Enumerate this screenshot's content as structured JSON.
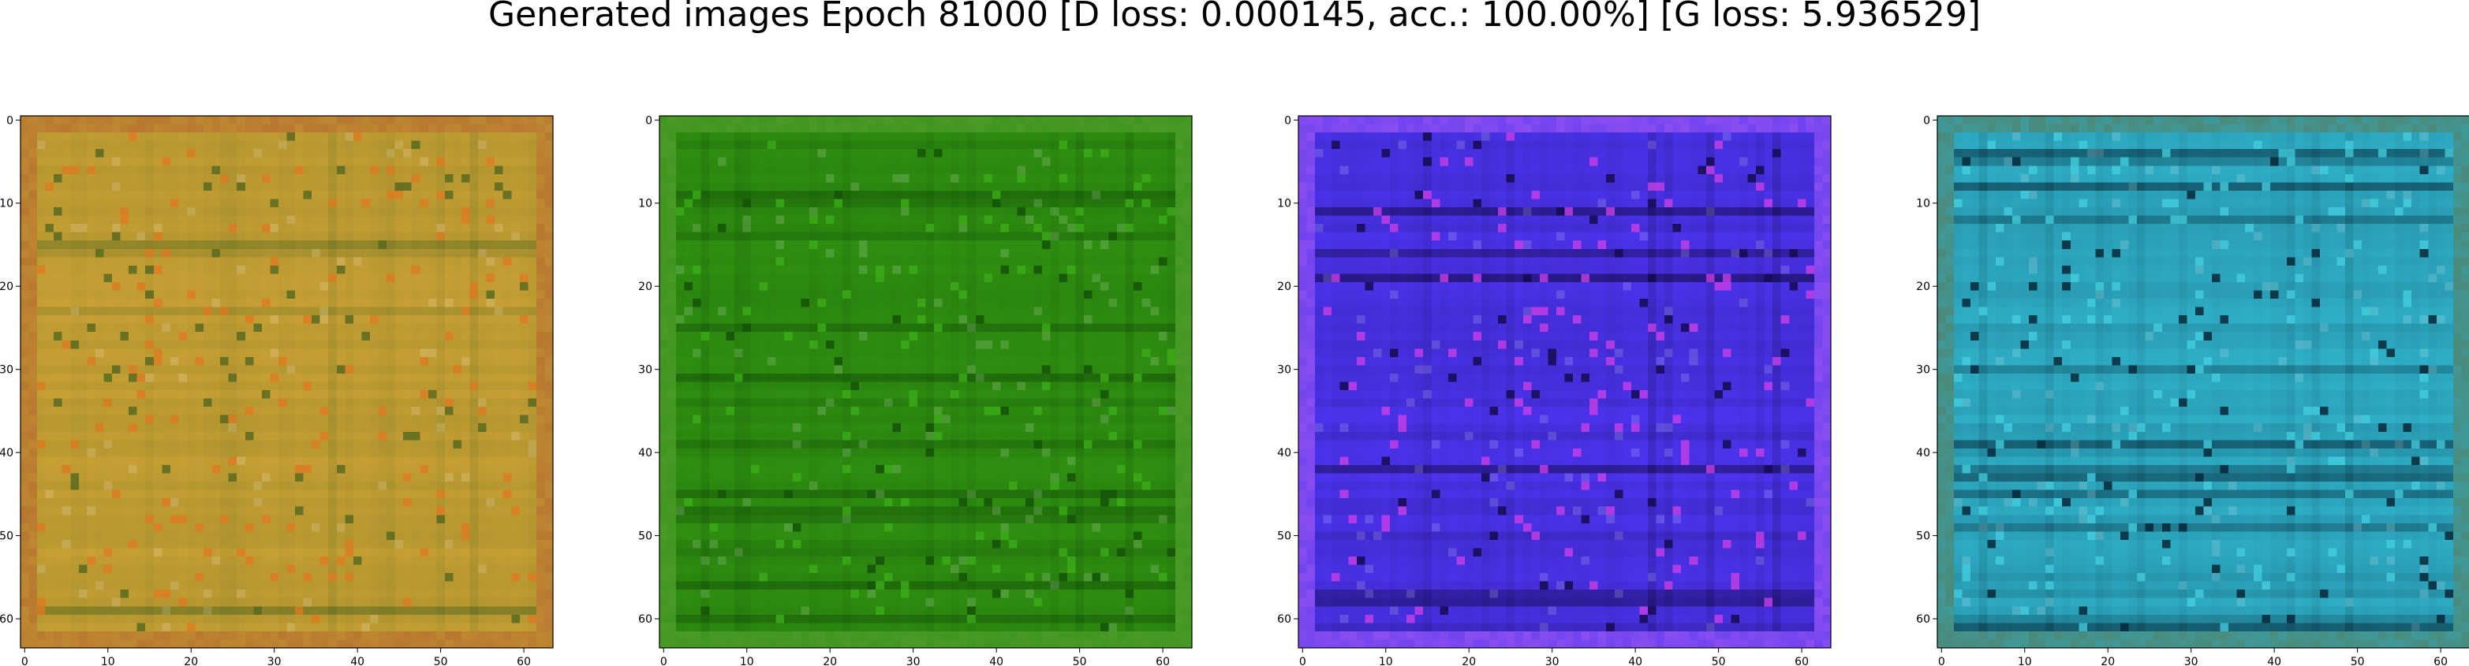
{
  "title": "Generated images Epoch 81000 [D loss: 0.000145, acc.: 100.00%] [G loss: 5.936529]",
  "images": [
    {
      "name": "yellow",
      "base_color": "#c8a034",
      "border_color": "#b87830",
      "dark_color": "#5a6a20",
      "accent_color": "#e07820",
      "x_ticks": [
        "0",
        "10",
        "20",
        "30",
        "40",
        "50",
        "60"
      ],
      "y_ticks": [
        "0",
        "10",
        "20",
        "30",
        "40",
        "50",
        "60"
      ]
    },
    {
      "name": "green",
      "base_color": "#2f8f10",
      "border_color": "#4a9a28",
      "dark_color": "#145208",
      "accent_color": "#3cae18",
      "x_ticks": [
        "0",
        "10",
        "20",
        "30",
        "40",
        "50",
        "60"
      ],
      "y_ticks": [
        "0",
        "10",
        "20",
        "30",
        "40",
        "50",
        "60"
      ]
    },
    {
      "name": "blue",
      "base_color": "#4b34ee",
      "border_color": "#8a4ef0",
      "dark_color": "#150a50",
      "accent_color": "#d040e8",
      "x_ticks": [
        "0",
        "10",
        "20",
        "30",
        "40",
        "50",
        "60"
      ],
      "y_ticks": [
        "0",
        "10",
        "20",
        "30",
        "40",
        "50",
        "60"
      ]
    },
    {
      "name": "cyan",
      "base_color": "#2fb0c8",
      "border_color": "#4a8a7a",
      "dark_color": "#062838",
      "accent_color": "#44d0e0",
      "x_ticks": [
        "0",
        "10",
        "20",
        "30",
        "40",
        "50",
        "60"
      ],
      "y_ticks": [
        "0",
        "10",
        "20",
        "30",
        "40",
        "50",
        "60"
      ]
    }
  ]
}
